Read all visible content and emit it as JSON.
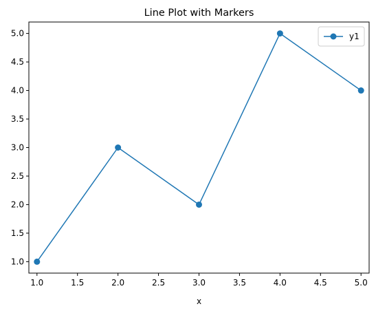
{
  "chart_data": {
    "type": "line",
    "title": "Line Plot with Markers",
    "xlabel": "x",
    "ylabel": "",
    "xlim": [
      0.9,
      5.1
    ],
    "ylim": [
      0.8,
      5.2
    ],
    "xticks": [
      "1.0",
      "1.5",
      "2.0",
      "2.5",
      "3.0",
      "3.5",
      "4.0",
      "4.5",
      "5.0"
    ],
    "yticks": [
      "1.0",
      "1.5",
      "2.0",
      "2.5",
      "3.0",
      "3.5",
      "4.0",
      "4.5",
      "5.0"
    ],
    "grid": false,
    "legend_position": "top-right",
    "series": [
      {
        "name": "y1",
        "color": "#1f77b4",
        "marker": "circle",
        "x": [
          1,
          2,
          3,
          4,
          5
        ],
        "y": [
          1,
          3,
          2,
          5,
          4
        ]
      }
    ]
  }
}
